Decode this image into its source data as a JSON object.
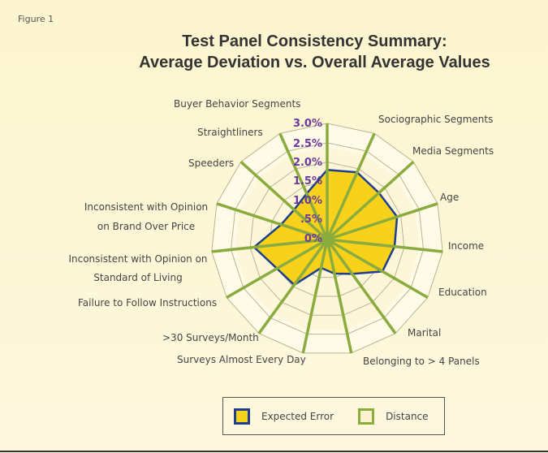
{
  "figure_label": "Figure 1",
  "chart_data": {
    "type": "radar",
    "title": [
      "Test Panel Consistency Summary:",
      "Average Deviation vs. Overall Average Values"
    ],
    "axes": [
      "Buyer Behavior Segments",
      "Sociographic Segments",
      "Media Segments",
      "Age",
      "Income",
      "Education",
      "Marital",
      "Belonging to > 4 Panels",
      "Surveys Almost Every Day",
      ">30 Surveys/Month",
      "Failure to Follow Instructions",
      "Inconsistent with Opinion on Standard of Living",
      "Inconsistent with Opinion on Brand Over Price",
      "Speeders",
      "Straightliners"
    ],
    "ticks": [
      "0%",
      ".5%",
      "1.0%",
      "1.5%",
      "2.0%",
      "2.5%",
      "3.0%"
    ],
    "rlim": [
      0,
      3.0
    ],
    "series": [
      {
        "name": "Expected Error",
        "values": [
          1.8,
          1.9,
          1.8,
          1.9,
          1.75,
          1.65,
          1.1,
          0.9,
          0.75,
          1.45,
          1.5,
          1.9,
          1.25,
          1.15,
          1.3
        ],
        "fill": "#f8d21a",
        "stroke": "#1d3f8c"
      },
      {
        "name": "Distance",
        "values": [
          3.0,
          3.0,
          3.0,
          3.0,
          3.0,
          3.0,
          3.0,
          3.0,
          3.0,
          3.0,
          3.0,
          3.0,
          3.0,
          3.0,
          3.0
        ],
        "fill": "#fbf3cf",
        "stroke": "#8aab3e"
      }
    ],
    "legend": "bottom-center"
  }
}
